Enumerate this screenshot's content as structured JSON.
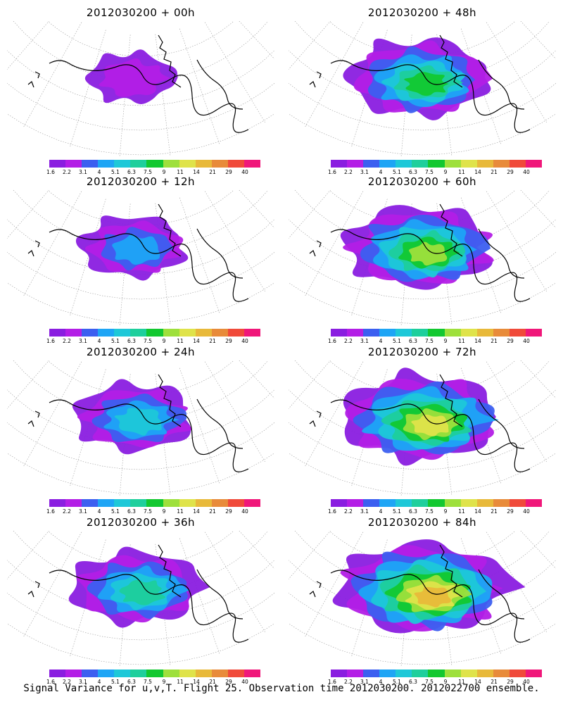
{
  "panels": [
    {
      "title": "2012030200 + 00h",
      "intensity": 0.05
    },
    {
      "title": "2012030200 + 48h",
      "intensity": 0.62
    },
    {
      "title": "2012030200 + 12h",
      "intensity": 0.28
    },
    {
      "title": "2012030200 + 60h",
      "intensity": 0.7
    },
    {
      "title": "2012030200 + 24h",
      "intensity": 0.42
    },
    {
      "title": "2012030200 + 72h",
      "intensity": 0.8
    },
    {
      "title": "2012030200 + 36h",
      "intensity": 0.52
    },
    {
      "title": "2012030200 + 84h",
      "intensity": 0.88
    }
  ],
  "colorbar": {
    "labels": [
      "1.6",
      "2.2",
      "3.1",
      "4",
      "5.1",
      "6.3",
      "7.5",
      "9",
      "11",
      "14",
      "21",
      "29",
      "40"
    ],
    "colors": [
      "#8a1ee0",
      "#b31ee6",
      "#3c5ff0",
      "#1ea5f5",
      "#1ec8d8",
      "#1ecf9c",
      "#12c830",
      "#9ee03c",
      "#dfe34a",
      "#e8b93a",
      "#e88b3a",
      "#f04a3a",
      "#f0177a"
    ]
  },
  "footer": "Signal Variance for u,v,T. Flight 25. Observation time 2012030200. 2012022700 ensemble."
}
